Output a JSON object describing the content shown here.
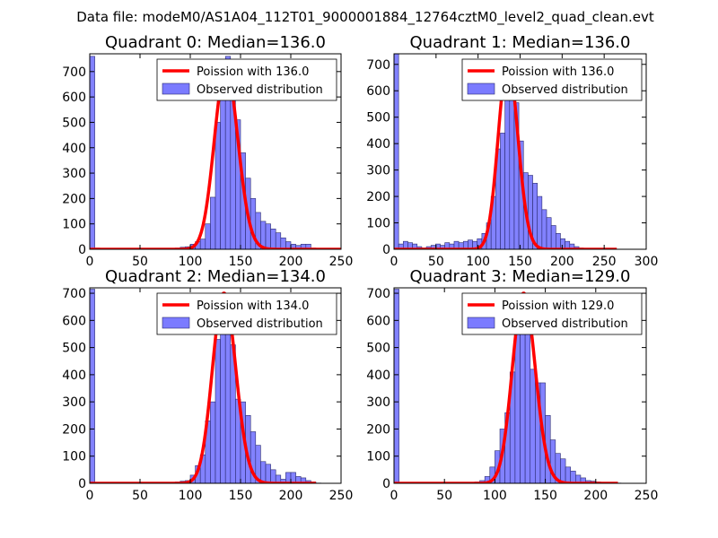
{
  "suptitle": "Data file: modeM0/AS1A04_112T01_9000001884_12764cztM0_level2_quad_clean.evt",
  "colors": {
    "bar": "#7b7bff",
    "bar_edge": "#2b2b6e",
    "poisson": "#ff0000",
    "background": "#ffffff"
  },
  "chart_data": [
    {
      "type": "bar",
      "title": "Quadrant 0: Median=136.0",
      "xlim": [
        0,
        250
      ],
      "ylim": [
        0,
        770
      ],
      "xticks": [
        0,
        50,
        100,
        150,
        200,
        250
      ],
      "yticks": [
        0,
        100,
        200,
        300,
        400,
        500,
        600,
        700
      ],
      "bin_width": 5,
      "bins": [
        [
          0,
          760
        ],
        [
          5,
          5
        ],
        [
          10,
          2
        ],
        [
          15,
          1
        ],
        [
          20,
          1
        ],
        [
          25,
          0
        ],
        [
          30,
          0
        ],
        [
          35,
          0
        ],
        [
          40,
          0
        ],
        [
          45,
          0
        ],
        [
          50,
          1
        ],
        [
          55,
          0
        ],
        [
          60,
          0
        ],
        [
          65,
          0
        ],
        [
          70,
          1
        ],
        [
          75,
          1
        ],
        [
          80,
          2
        ],
        [
          85,
          5
        ],
        [
          90,
          8
        ],
        [
          95,
          10
        ],
        [
          100,
          20
        ],
        [
          105,
          30
        ],
        [
          110,
          40
        ],
        [
          115,
          100
        ],
        [
          120,
          205
        ],
        [
          125,
          500
        ],
        [
          130,
          620
        ],
        [
          135,
          760
        ],
        [
          140,
          590
        ],
        [
          145,
          510
        ],
        [
          150,
          380
        ],
        [
          155,
          280
        ],
        [
          160,
          200
        ],
        [
          165,
          145
        ],
        [
          170,
          110
        ],
        [
          175,
          100
        ],
        [
          180,
          80
        ],
        [
          185,
          65
        ],
        [
          190,
          45
        ],
        [
          195,
          30
        ],
        [
          200,
          20
        ],
        [
          205,
          15
        ],
        [
          210,
          20
        ],
        [
          215,
          20
        ],
        [
          220,
          5
        ],
        [
          225,
          3
        ],
        [
          230,
          1
        ],
        [
          235,
          1
        ],
        [
          240,
          0
        ],
        [
          245,
          0
        ]
      ],
      "poisson": {
        "label": "Poission with 136.0",
        "mean": 136.0,
        "peak": 715,
        "x_max": 250
      },
      "hist_label": "Observed distribution"
    },
    {
      "type": "bar",
      "title": "Quadrant 1: Median=136.0",
      "xlim": [
        0,
        300
      ],
      "ylim": [
        0,
        740
      ],
      "xticks": [
        0,
        50,
        100,
        150,
        200,
        250,
        300
      ],
      "yticks": [
        0,
        100,
        200,
        300,
        400,
        500,
        600,
        700
      ],
      "bin_width": 5.5,
      "bins": [
        [
          0,
          740
        ],
        [
          5.5,
          20
        ],
        [
          11,
          30
        ],
        [
          16.5,
          25
        ],
        [
          22,
          20
        ],
        [
          27.5,
          10
        ],
        [
          33,
          5
        ],
        [
          38.5,
          10
        ],
        [
          44,
          15
        ],
        [
          49.5,
          20
        ],
        [
          55,
          15
        ],
        [
          60.5,
          25
        ],
        [
          66,
          20
        ],
        [
          71.5,
          30
        ],
        [
          77,
          25
        ],
        [
          82.5,
          30
        ],
        [
          88,
          35
        ],
        [
          93.5,
          30
        ],
        [
          99,
          40
        ],
        [
          104.5,
          60
        ],
        [
          110,
          100
        ],
        [
          115.5,
          200
        ],
        [
          121,
          380
        ],
        [
          126.5,
          440
        ],
        [
          132,
          600
        ],
        [
          137.5,
          680
        ],
        [
          143,
          555
        ],
        [
          148.5,
          410
        ],
        [
          154,
          290
        ],
        [
          159.5,
          280
        ],
        [
          165,
          250
        ],
        [
          170.5,
          200
        ],
        [
          176,
          150
        ],
        [
          181.5,
          120
        ],
        [
          187,
          90
        ],
        [
          192.5,
          60
        ],
        [
          198,
          40
        ],
        [
          203.5,
          30
        ],
        [
          209,
          20
        ],
        [
          214.5,
          10
        ],
        [
          220,
          5
        ],
        [
          225.5,
          3
        ],
        [
          231,
          1
        ],
        [
          236.5,
          1
        ]
      ],
      "poisson": {
        "label": "Poission with 136.0",
        "mean": 136.0,
        "peak": 710,
        "x_max": 265
      },
      "hist_label": "Observed distribution"
    },
    {
      "type": "bar",
      "title": "Quadrant 2: Median=134.0",
      "xlim": [
        0,
        250
      ],
      "ylim": [
        0,
        720
      ],
      "xticks": [
        0,
        50,
        100,
        150,
        200,
        250
      ],
      "yticks": [
        0,
        100,
        200,
        300,
        400,
        500,
        600,
        700
      ],
      "bin_width": 5,
      "bins": [
        [
          0,
          715
        ],
        [
          5,
          3
        ],
        [
          10,
          1
        ],
        [
          15,
          1
        ],
        [
          20,
          0
        ],
        [
          25,
          0
        ],
        [
          30,
          0
        ],
        [
          35,
          0
        ],
        [
          40,
          0
        ],
        [
          45,
          0
        ],
        [
          50,
          0
        ],
        [
          55,
          0
        ],
        [
          60,
          0
        ],
        [
          65,
          0
        ],
        [
          70,
          0
        ],
        [
          75,
          0
        ],
        [
          80,
          2
        ],
        [
          85,
          5
        ],
        [
          90,
          8
        ],
        [
          95,
          10
        ],
        [
          100,
          30
        ],
        [
          105,
          65
        ],
        [
          110,
          105
        ],
        [
          115,
          230
        ],
        [
          120,
          300
        ],
        [
          125,
          530
        ],
        [
          130,
          640
        ],
        [
          135,
          690
        ],
        [
          140,
          510
        ],
        [
          145,
          310
        ],
        [
          150,
          300
        ],
        [
          155,
          250
        ],
        [
          160,
          190
        ],
        [
          165,
          140
        ],
        [
          170,
          80
        ],
        [
          175,
          70
        ],
        [
          180,
          50
        ],
        [
          185,
          30
        ],
        [
          190,
          15
        ],
        [
          195,
          40
        ],
        [
          200,
          40
        ],
        [
          205,
          25
        ],
        [
          210,
          20
        ],
        [
          215,
          10
        ],
        [
          220,
          5
        ],
        [
          225,
          1
        ]
      ],
      "poisson": {
        "label": "Poission with 134.0",
        "mean": 134.0,
        "peak": 700,
        "x_max": 225
      },
      "hist_label": "Observed distribution"
    },
    {
      "type": "bar",
      "title": "Quadrant 3: Median=129.0",
      "xlim": [
        0,
        250
      ],
      "ylim": [
        0,
        720
      ],
      "xticks": [
        0,
        50,
        100,
        150,
        200,
        250
      ],
      "yticks": [
        0,
        100,
        200,
        300,
        400,
        500,
        600,
        700
      ],
      "bin_width": 5,
      "bins": [
        [
          0,
          715
        ],
        [
          5,
          3
        ],
        [
          10,
          1
        ],
        [
          15,
          1
        ],
        [
          20,
          0
        ],
        [
          25,
          0
        ],
        [
          30,
          0
        ],
        [
          35,
          0
        ],
        [
          40,
          0
        ],
        [
          45,
          0
        ],
        [
          50,
          0
        ],
        [
          55,
          0
        ],
        [
          60,
          0
        ],
        [
          65,
          0
        ],
        [
          70,
          1
        ],
        [
          75,
          3
        ],
        [
          80,
          5
        ],
        [
          85,
          10
        ],
        [
          90,
          25
        ],
        [
          95,
          60
        ],
        [
          100,
          120
        ],
        [
          105,
          200
        ],
        [
          110,
          260
        ],
        [
          115,
          410
        ],
        [
          120,
          570
        ],
        [
          125,
          690
        ],
        [
          130,
          600
        ],
        [
          135,
          420
        ],
        [
          140,
          370
        ],
        [
          145,
          370
        ],
        [
          150,
          250
        ],
        [
          155,
          160
        ],
        [
          160,
          110
        ],
        [
          165,
          90
        ],
        [
          170,
          60
        ],
        [
          175,
          45
        ],
        [
          180,
          30
        ],
        [
          185,
          20
        ],
        [
          190,
          10
        ],
        [
          195,
          8
        ],
        [
          200,
          5
        ],
        [
          205,
          3
        ],
        [
          210,
          1
        ],
        [
          215,
          1
        ],
        [
          220,
          1
        ]
      ],
      "poisson": {
        "label": "Poission with 129.0",
        "mean": 129.0,
        "peak": 700,
        "x_max": 222
      },
      "hist_label": "Observed distribution"
    }
  ]
}
